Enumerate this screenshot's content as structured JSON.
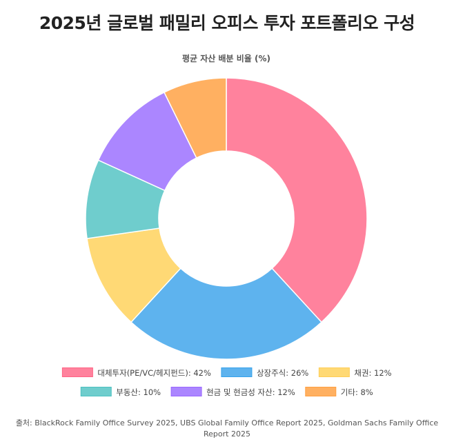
{
  "page": {
    "title": "2025년 글로벌 패밀리 오피스 투자 포트폴리오 구성",
    "source": "출처: BlackRock Family Office Survey 2025, UBS Global Family Office Report 2025, Goldman Sachs Family Office Report 2025"
  },
  "chart_data": {
    "type": "pie",
    "variant": "doughnut",
    "title": "평균 자산 배분 비율 (%)",
    "legend_position": "bottom",
    "categories": [
      "대체투자(PE/VC/헤지펀드)",
      "상장주식",
      "채권",
      "부동산",
      "현금 및 현금성 자산",
      "기타"
    ],
    "legend_labels": [
      "대체투자(PE/VC/헤지펀드): 42%",
      "상장주식: 26%",
      "채권: 12%",
      "부동산: 10%",
      "현금 및 현금성 자산: 12%",
      "기타: 8%"
    ],
    "values": [
      42,
      26,
      12,
      10,
      12,
      8
    ],
    "colors": [
      "#ff829d",
      "#5eb3ee",
      "#ffd975",
      "#6fcdcd",
      "#ab86ff",
      "#ffb061"
    ],
    "border_colors": [
      "#ff6384",
      "#36a2eb",
      "#ffcd56",
      "#4bc0c0",
      "#9966ff",
      "#ff9f40"
    ]
  }
}
